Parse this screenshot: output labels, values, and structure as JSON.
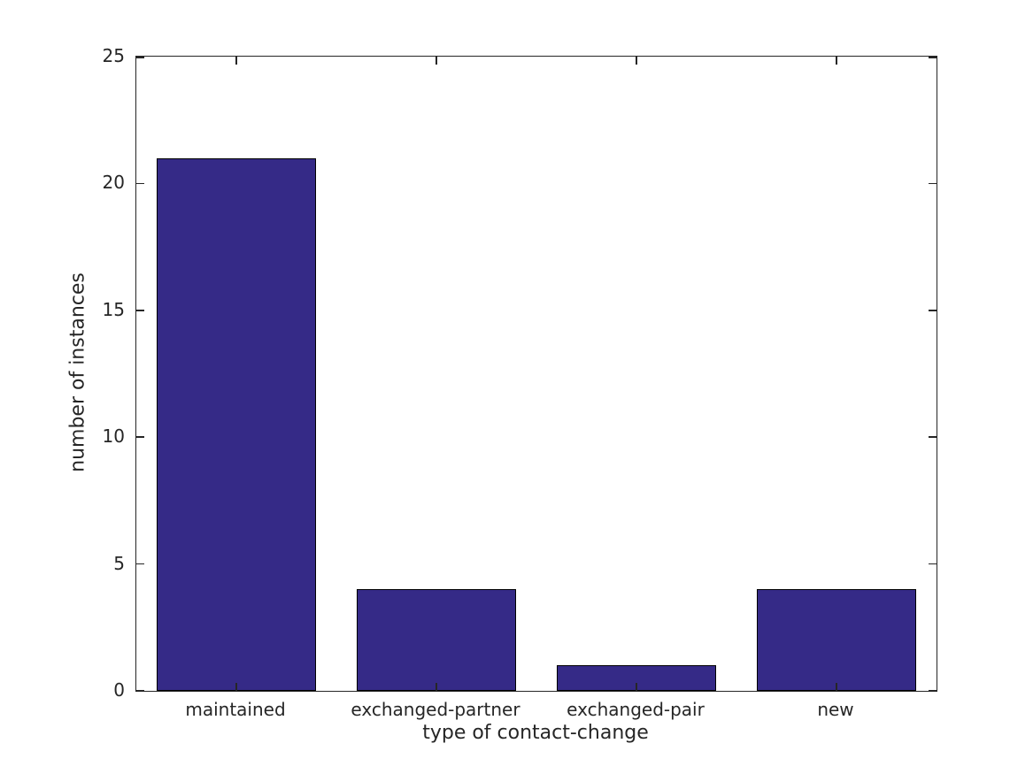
{
  "chart_data": {
    "type": "bar",
    "categories": [
      "maintained",
      "exchanged-partner",
      "exchanged-pair",
      "new"
    ],
    "values": [
      21,
      4,
      1,
      4
    ],
    "title": "",
    "xlabel": "type of contact-change",
    "ylabel": "number of instances",
    "ylim": [
      0,
      25
    ],
    "yticks": [
      0,
      5,
      10,
      15,
      20,
      25
    ],
    "ytick_labels": [
      "0",
      "5",
      "10",
      "15",
      "20",
      "25"
    ],
    "bar_width_fraction": 0.8,
    "grid": false,
    "legend": "none",
    "box": true,
    "tick_direction": "in",
    "colors": {
      "bar_fill": "#352A87",
      "bar_edge": "#000000",
      "axis": "#262626",
      "text": "#262626",
      "background": "#FFFFFF"
    }
  }
}
